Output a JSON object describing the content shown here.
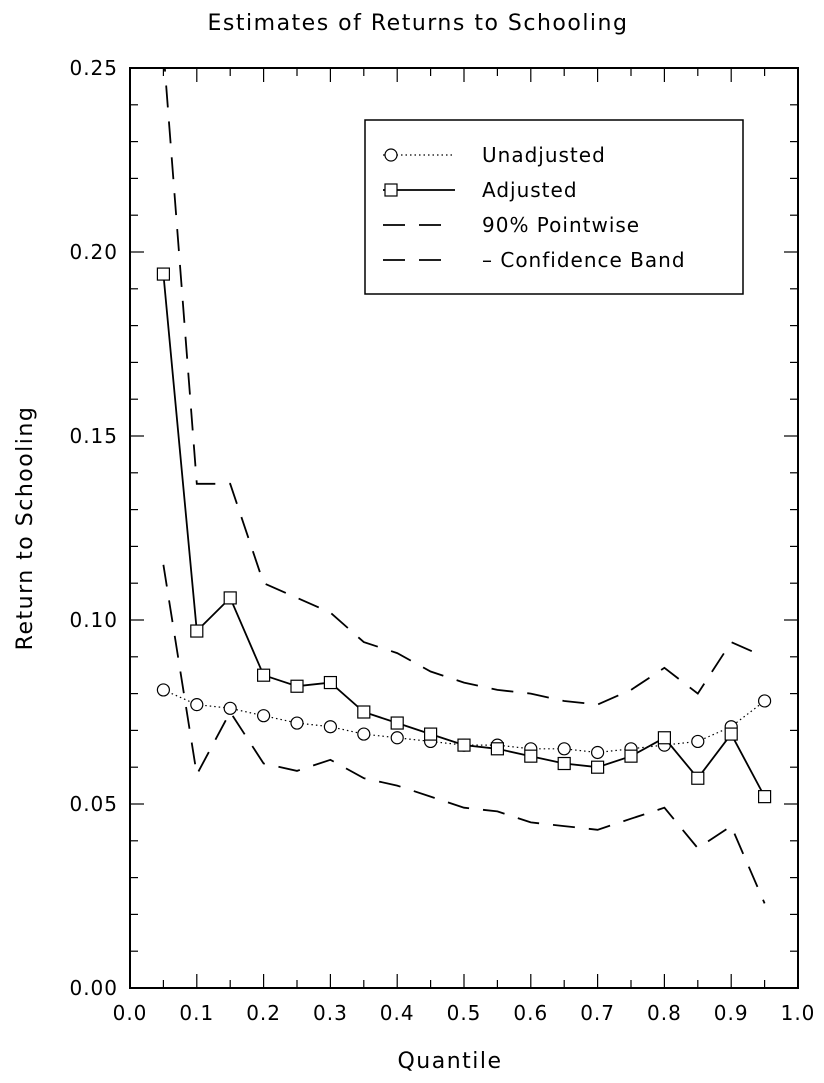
{
  "chart_data": {
    "type": "line",
    "title": "Estimates of Returns to Schooling",
    "xlabel": "Quantile",
    "ylabel": "Return to Schooling",
    "xlim": [
      0.0,
      1.0
    ],
    "ylim": [
      0.0,
      0.25
    ],
    "x_ticks": [
      "0.0",
      "0.1",
      "0.2",
      "0.3",
      "0.4",
      "0.5",
      "0.6",
      "0.7",
      "0.8",
      "0.9",
      "1.0"
    ],
    "y_ticks": [
      "0.00",
      "0.05",
      "0.10",
      "0.15",
      "0.20",
      "0.25"
    ],
    "grid": false,
    "legend_position": "top-right",
    "legend": [
      "Unadjusted",
      "Adjusted",
      "90% Pointwise",
      "– Confidence Band"
    ],
    "x": [
      0.05,
      0.1,
      0.15,
      0.2,
      0.25,
      0.3,
      0.35,
      0.4,
      0.45,
      0.5,
      0.55,
      0.6,
      0.65,
      0.7,
      0.75,
      0.8,
      0.85,
      0.9,
      0.95
    ],
    "series": [
      {
        "name": "Unadjusted",
        "style": "dotted",
        "marker": "circle",
        "values": [
          0.081,
          0.077,
          0.076,
          0.074,
          0.072,
          0.071,
          0.069,
          0.068,
          0.067,
          0.066,
          0.066,
          0.065,
          0.065,
          0.064,
          0.065,
          0.066,
          0.067,
          0.071,
          0.078
        ]
      },
      {
        "name": "Adjusted",
        "style": "solid",
        "marker": "square",
        "values": [
          0.194,
          0.097,
          0.106,
          0.085,
          0.082,
          0.083,
          0.075,
          0.072,
          0.069,
          0.066,
          0.065,
          0.063,
          0.061,
          0.06,
          0.063,
          0.068,
          0.057,
          0.069,
          0.052
        ]
      },
      {
        "name": "90% Pointwise Confidence Band (upper)",
        "style": "dashed",
        "marker": "none",
        "values": [
          0.255,
          0.137,
          0.137,
          0.11,
          0.106,
          0.102,
          0.094,
          0.091,
          0.086,
          0.083,
          0.081,
          0.08,
          0.078,
          0.077,
          0.081,
          0.087,
          0.08,
          0.094,
          0.09
        ]
      },
      {
        "name": "90% Pointwise Confidence Band (lower)",
        "style": "dashed",
        "marker": "none",
        "values": [
          0.115,
          0.058,
          0.075,
          0.061,
          0.059,
          0.062,
          0.057,
          0.055,
          0.052,
          0.049,
          0.048,
          0.045,
          0.044,
          0.043,
          0.046,
          0.049,
          0.038,
          0.044,
          0.023
        ]
      }
    ],
    "colors": {
      "line": "#000000",
      "background": "#ffffff"
    }
  }
}
